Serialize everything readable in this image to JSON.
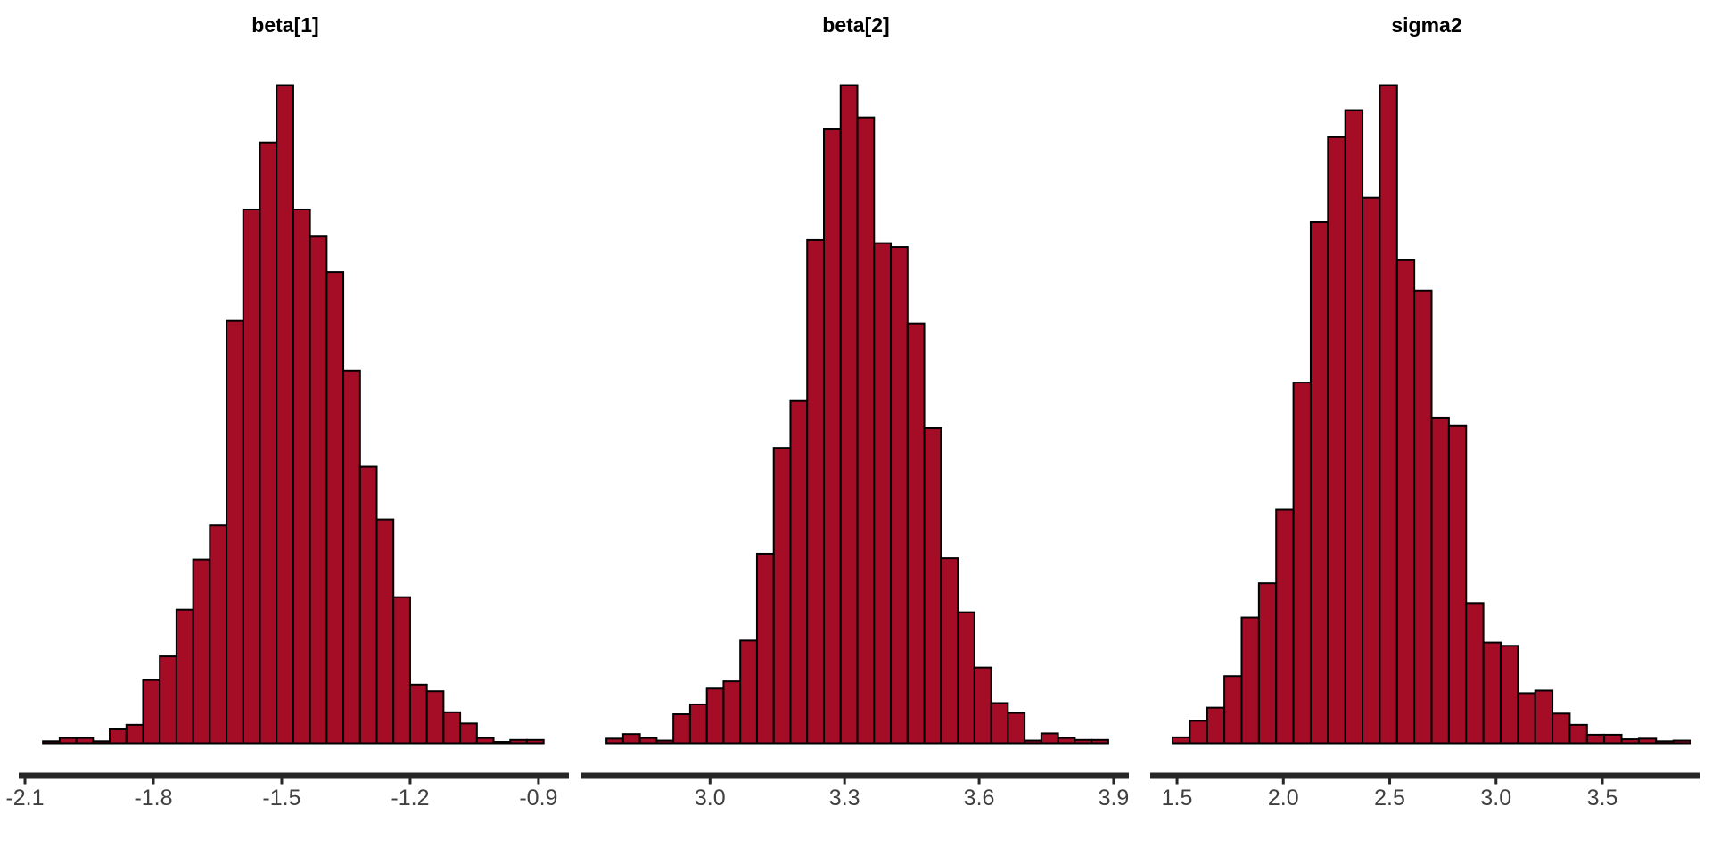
{
  "figure": {
    "background": "#ffffff",
    "bar_fill": "#A50D27",
    "bar_stroke": "#000000",
    "axis_color": "#262626",
    "tick_label_color": "#404040",
    "title_color": "#000000"
  },
  "chart_data": [
    {
      "type": "bar",
      "subtype": "histogram",
      "title": "beta[1]",
      "xlabel": "",
      "ylabel": "",
      "grid": false,
      "legend": false,
      "x_domain": [
        -2.1146,
        -0.829
      ],
      "x_ticks": [
        {
          "value": -2.1,
          "label": "-2.1"
        },
        {
          "value": -1.8,
          "label": "-1.8"
        },
        {
          "value": -1.5,
          "label": "-1.5"
        },
        {
          "value": -1.2,
          "label": "-1.2"
        },
        {
          "value": -0.9,
          "label": "-0.9"
        }
      ],
      "bins": {
        "start": -2.058,
        "width": 0.039,
        "heights_normalized": [
          0.003,
          0.008,
          0.008,
          0.003,
          0.021,
          0.028,
          0.096,
          0.132,
          0.203,
          0.279,
          0.331,
          0.642,
          0.811,
          0.913,
          1.0,
          0.811,
          0.77,
          0.716,
          0.566,
          0.42,
          0.34,
          0.222,
          0.089,
          0.079,
          0.047,
          0.03,
          0.008,
          0.002,
          0.005,
          0.005
        ]
      },
      "y_max_normalized": 1.0
    },
    {
      "type": "bar",
      "subtype": "histogram",
      "title": "beta[2]",
      "xlabel": "",
      "ylabel": "",
      "grid": false,
      "legend": false,
      "x_domain": [
        2.7131,
        3.9339
      ],
      "x_ticks": [
        {
          "value": 3.0,
          "label": "3.0"
        },
        {
          "value": 3.3,
          "label": "3.3"
        },
        {
          "value": 3.6,
          "label": "3.6"
        },
        {
          "value": 3.9,
          "label": "3.9"
        }
      ],
      "bins": {
        "start": 2.769,
        "width": 0.0373,
        "heights_normalized": [
          0.007,
          0.014,
          0.008,
          0.004,
          0.044,
          0.059,
          0.083,
          0.094,
          0.156,
          0.288,
          0.449,
          0.52,
          0.765,
          0.933,
          1.0,
          0.951,
          0.76,
          0.754,
          0.638,
          0.479,
          0.281,
          0.199,
          0.115,
          0.061,
          0.046,
          0.004,
          0.015,
          0.008,
          0.005,
          0.005
        ]
      },
      "y_max_normalized": 1.0
    },
    {
      "type": "bar",
      "subtype": "histogram",
      "title": "sigma2",
      "xlabel": "",
      "ylabel": "",
      "grid": false,
      "legend": false,
      "x_domain": [
        1.374,
        3.957
      ],
      "x_ticks": [
        {
          "value": 1.5,
          "label": "1.5"
        },
        {
          "value": 2.0,
          "label": "2.0"
        },
        {
          "value": 2.5,
          "label": "2.5"
        },
        {
          "value": 3.0,
          "label": "3.0"
        },
        {
          "value": 3.5,
          "label": "3.5"
        }
      ],
      "bins": {
        "start": 1.479,
        "width": 0.0812,
        "heights_normalized": [
          0.009,
          0.034,
          0.054,
          0.102,
          0.191,
          0.243,
          0.355,
          0.548,
          0.792,
          0.921,
          0.962,
          0.829,
          1.0,
          0.734,
          0.688,
          0.494,
          0.482,
          0.213,
          0.153,
          0.148,
          0.076,
          0.08,
          0.045,
          0.028,
          0.013,
          0.013,
          0.006,
          0.007,
          0.003,
          0.004
        ]
      },
      "y_max_normalized": 1.0
    }
  ]
}
